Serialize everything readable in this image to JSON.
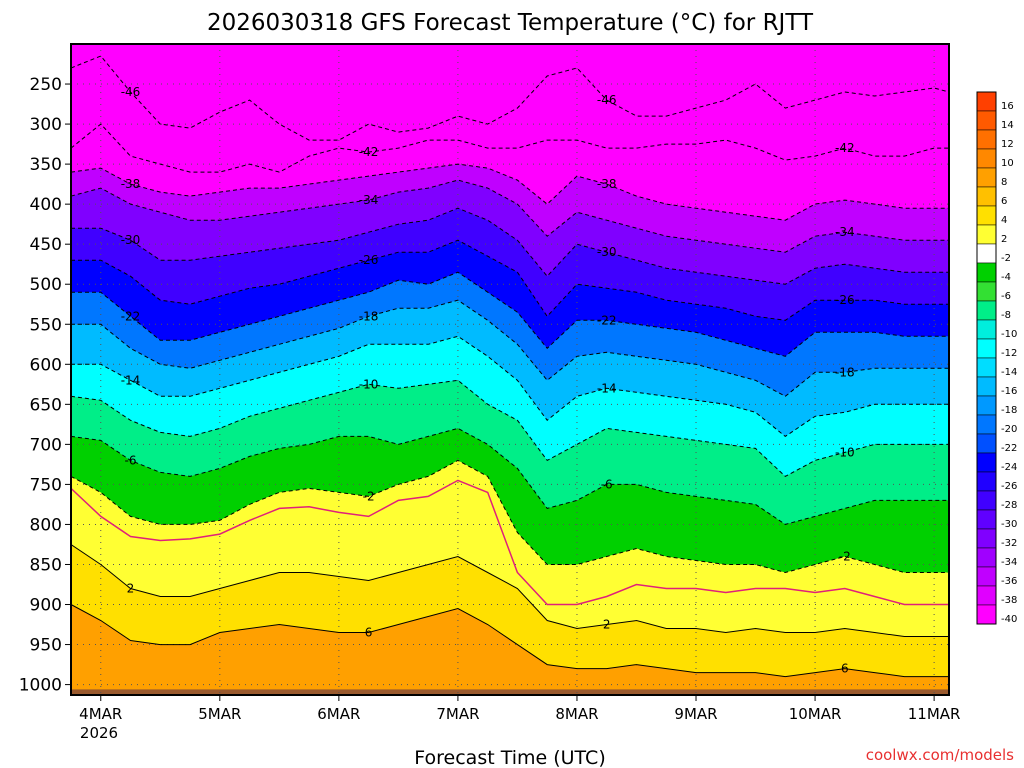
{
  "chart_data": {
    "type": "heatmap",
    "title": "2026030318 GFS Forecast Temperature (°C) for RJTT",
    "xlabel": "Forecast Time (UTC)",
    "ylabel": "",
    "credit": "coolwx.com/models",
    "x_ticks": [
      "4MAR",
      "5MAR",
      "6MAR",
      "7MAR",
      "8MAR",
      "9MAR",
      "10MAR",
      "11MAR"
    ],
    "x_sub_label": "2026",
    "x_range_days": [
      3.75,
      11.125
    ],
    "y_ticks": [
      250,
      300,
      350,
      400,
      450,
      500,
      550,
      600,
      650,
      700,
      750,
      800,
      850,
      900,
      950,
      1000
    ],
    "y_range_hPa": [
      200,
      1013
    ],
    "colorbar": {
      "levels": [
        16,
        14,
        12,
        10,
        8,
        6,
        4,
        2,
        -2,
        -4,
        -6,
        -8,
        -10,
        -12,
        -14,
        -16,
        -18,
        -20,
        -22,
        -24,
        -26,
        -28,
        -30,
        -32,
        -34,
        -36,
        -38,
        -40
      ],
      "colors": [
        "#ff4000",
        "#ff5a00",
        "#ff7000",
        "#ff8800",
        "#ffa000",
        "#ffc000",
        "#ffe000",
        "#ffff33",
        "#ffffff",
        "#00d000",
        "#33e033",
        "#00ee88",
        "#00eedd",
        "#00ffff",
        "#00ddff",
        "#00bbff",
        "#0099ff",
        "#0077ff",
        "#0050ff",
        "#0000ff",
        "#2000ff",
        "#4000ff",
        "#6000ff",
        "#8000ff",
        "#a000ff",
        "#c000ff",
        "#e000ff",
        "#ff00ff"
      ]
    },
    "time_columns": [
      3.75,
      4.0,
      4.25,
      4.5,
      4.75,
      5.0,
      5.25,
      5.5,
      5.75,
      6.0,
      6.25,
      6.5,
      6.75,
      7.0,
      7.25,
      7.5,
      7.75,
      8.0,
      8.25,
      8.5,
      8.75,
      9.0,
      9.25,
      9.5,
      9.75,
      10.0,
      10.25,
      10.5,
      10.75,
      11.0,
      11.125
    ],
    "freezing_level_hPa": [
      755,
      790,
      815,
      820,
      818,
      812,
      795,
      780,
      778,
      785,
      790,
      770,
      765,
      745,
      760,
      860,
      900,
      900,
      890,
      875,
      880,
      880,
      885,
      880,
      880,
      885,
      880,
      890,
      900,
      900,
      900
    ],
    "isotherm_levels": [
      -46,
      -42,
      -38,
      -34,
      -30,
      -26,
      -22,
      -18,
      -14,
      -10,
      -6,
      -2,
      2,
      6
    ],
    "isotherm_profiles": [
      {
        "t": -46,
        "p": [
          230,
          215,
          260,
          300,
          305,
          285,
          270,
          300,
          320,
          320,
          300,
          310,
          305,
          290,
          300,
          280,
          240,
          230,
          270,
          290,
          290,
          280,
          270,
          250,
          280,
          270,
          260,
          265,
          260,
          255,
          260
        ]
      },
      {
        "t": -42,
        "p": [
          330,
          300,
          340,
          350,
          360,
          360,
          350,
          360,
          340,
          330,
          335,
          330,
          320,
          320,
          330,
          330,
          320,
          320,
          330,
          330,
          325,
          325,
          320,
          330,
          345,
          340,
          330,
          340,
          340,
          330,
          330
        ]
      },
      {
        "t": -38,
        "p": [
          360,
          355,
          375,
          385,
          390,
          385,
          380,
          380,
          375,
          370,
          365,
          360,
          355,
          350,
          355,
          370,
          400,
          365,
          375,
          390,
          400,
          405,
          410,
          415,
          420,
          400,
          395,
          400,
          405,
          405,
          405
        ]
      },
      {
        "t": -34,
        "p": [
          390,
          380,
          400,
          410,
          420,
          420,
          415,
          410,
          405,
          400,
          395,
          385,
          380,
          370,
          380,
          400,
          440,
          410,
          420,
          430,
          440,
          445,
          450,
          455,
          460,
          440,
          435,
          440,
          445,
          445,
          445
        ]
      },
      {
        "t": -30,
        "p": [
          430,
          430,
          445,
          470,
          470,
          465,
          460,
          455,
          450,
          445,
          435,
          425,
          420,
          405,
          420,
          445,
          490,
          450,
          460,
          470,
          480,
          485,
          490,
          495,
          500,
          480,
          475,
          480,
          485,
          485,
          485
        ]
      },
      {
        "t": -26,
        "p": [
          470,
          470,
          490,
          520,
          525,
          515,
          505,
          500,
          490,
          480,
          470,
          460,
          460,
          445,
          465,
          485,
          540,
          500,
          505,
          510,
          520,
          525,
          530,
          540,
          545,
          520,
          520,
          520,
          525,
          525,
          525
        ]
      },
      {
        "t": -22,
        "p": [
          510,
          510,
          540,
          570,
          570,
          560,
          550,
          540,
          530,
          520,
          510,
          495,
          500,
          485,
          510,
          535,
          580,
          545,
          545,
          550,
          555,
          560,
          570,
          580,
          590,
          560,
          560,
          560,
          565,
          565,
          565
        ]
      },
      {
        "t": -18,
        "p": [
          550,
          550,
          580,
          600,
          605,
          595,
          585,
          575,
          565,
          555,
          540,
          530,
          530,
          520,
          545,
          575,
          620,
          590,
          585,
          590,
          595,
          600,
          610,
          620,
          640,
          610,
          610,
          605,
          605,
          605,
          605
        ]
      },
      {
        "t": -14,
        "p": [
          600,
          600,
          620,
          640,
          640,
          630,
          620,
          610,
          600,
          590,
          575,
          575,
          575,
          565,
          590,
          620,
          670,
          640,
          630,
          635,
          640,
          645,
          650,
          660,
          690,
          665,
          660,
          650,
          650,
          650,
          650
        ]
      },
      {
        "t": -10,
        "p": [
          640,
          645,
          670,
          685,
          690,
          680,
          665,
          655,
          645,
          635,
          625,
          630,
          625,
          620,
          650,
          670,
          720,
          700,
          680,
          685,
          690,
          695,
          700,
          705,
          740,
          720,
          710,
          700,
          700,
          700,
          700
        ]
      },
      {
        "t": -6,
        "p": [
          690,
          695,
          720,
          735,
          740,
          730,
          715,
          705,
          700,
          690,
          690,
          700,
          690,
          680,
          700,
          730,
          780,
          770,
          750,
          750,
          760,
          765,
          770,
          775,
          800,
          790,
          780,
          770,
          770,
          770,
          770
        ]
      },
      {
        "t": -2,
        "p": [
          740,
          760,
          790,
          800,
          800,
          795,
          775,
          760,
          755,
          760,
          765,
          750,
          740,
          720,
          740,
          810,
          850,
          850,
          840,
          830,
          840,
          845,
          850,
          850,
          860,
          850,
          840,
          850,
          860,
          860,
          860
        ]
      },
      {
        "t": 2,
        "p": [
          825,
          850,
          880,
          890,
          890,
          880,
          870,
          860,
          860,
          865,
          870,
          860,
          850,
          840,
          860,
          880,
          920,
          930,
          925,
          920,
          930,
          930,
          935,
          930,
          935,
          935,
          930,
          935,
          940,
          940,
          940
        ]
      },
      {
        "t": 6,
        "p": [
          900,
          920,
          945,
          950,
          950,
          935,
          930,
          925,
          930,
          935,
          935,
          925,
          915,
          905,
          925,
          950,
          975,
          980,
          980,
          975,
          980,
          985,
          985,
          985,
          990,
          985,
          980,
          985,
          990,
          990,
          990
        ]
      }
    ]
  }
}
